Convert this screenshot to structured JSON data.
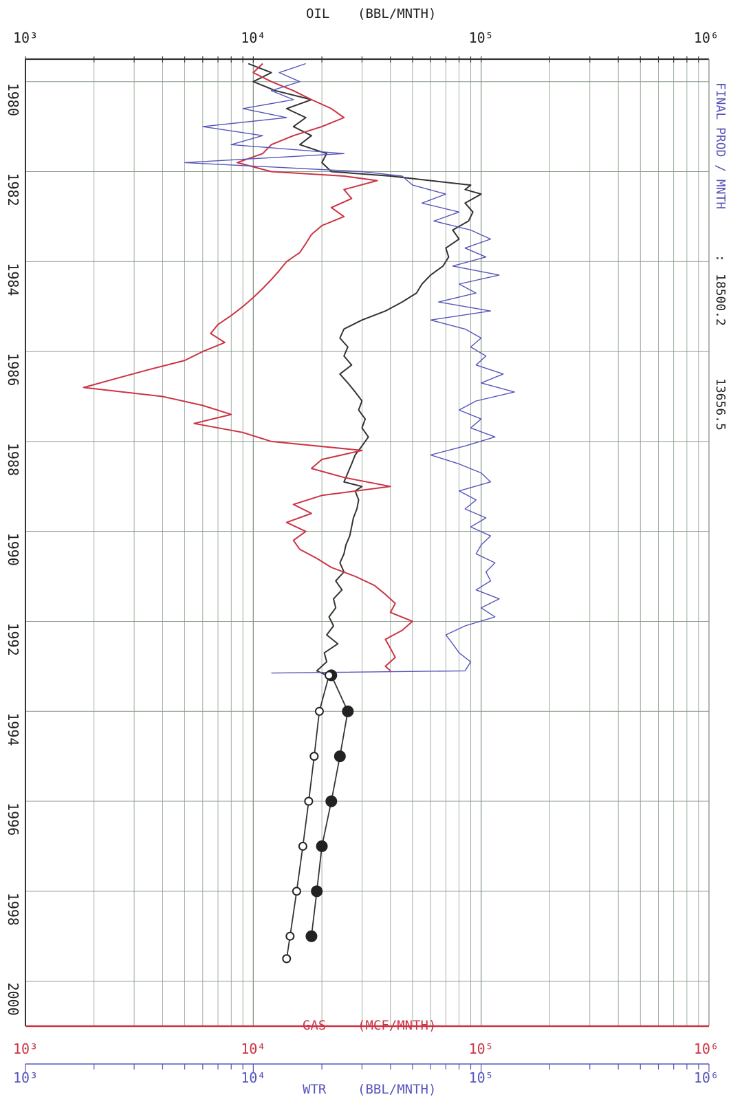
{
  "chart_data": {
    "type": "line",
    "x_scale": "log",
    "xlim": [
      1000,
      1000000
    ],
    "ylim": [
      1979.5,
      2001
    ],
    "y_orientation": "down",
    "grid": true,
    "top_axis": {
      "name": "OIL",
      "unit": "(BBL/MNTH)",
      "ticks": [
        "10³",
        "10⁴",
        "10⁵",
        "10⁶"
      ]
    },
    "gas_axis": {
      "name": "GAS",
      "unit": "(MCF/MNTH)",
      "ticks": [
        "10³",
        "10⁴",
        "10⁵",
        "10⁶"
      ]
    },
    "wtr_axis": {
      "name": "WTR",
      "unit": "(BBL/MNTH)",
      "ticks": [
        "10³",
        "10⁴",
        "10⁵",
        "10⁶"
      ]
    },
    "year_labels": [
      "1980",
      "1982",
      "1984",
      "1986",
      "1988",
      "1990",
      "1992",
      "1994",
      "1996",
      "1998",
      "2000"
    ],
    "year_values": [
      1980,
      1982,
      1984,
      1986,
      1988,
      1990,
      1992,
      1994,
      1996,
      1998,
      2000
    ],
    "right_label": {
      "title": "FINAL PROD / MNTH",
      "sep": ":",
      "value1": "18500.2",
      "value2": "13656.5"
    },
    "colors": {
      "oil": "#333333",
      "gas": "#cc3344",
      "water": "#5555bb",
      "grid": "#8a9a8a",
      "axis": "#333333"
    },
    "series": [
      {
        "key": "oil",
        "points": [
          [
            1979.6,
            9500
          ],
          [
            1979.8,
            12000
          ],
          [
            1980.0,
            10000
          ],
          [
            1980.2,
            12500
          ],
          [
            1980.4,
            18000
          ],
          [
            1980.6,
            14000
          ],
          [
            1980.8,
            17000
          ],
          [
            1981.0,
            15000
          ],
          [
            1981.2,
            18000
          ],
          [
            1981.4,
            16000
          ],
          [
            1981.6,
            21000
          ],
          [
            1981.8,
            20000
          ],
          [
            1982.0,
            22000
          ],
          [
            1982.1,
            40000
          ],
          [
            1982.2,
            60000
          ],
          [
            1982.3,
            90000
          ],
          [
            1982.4,
            85000
          ],
          [
            1982.5,
            100000
          ],
          [
            1982.7,
            85000
          ],
          [
            1982.9,
            92000
          ],
          [
            1983.1,
            88000
          ],
          [
            1983.3,
            75000
          ],
          [
            1983.5,
            80000
          ],
          [
            1983.7,
            70000
          ],
          [
            1983.9,
            72000
          ],
          [
            1984.1,
            68000
          ],
          [
            1984.3,
            60000
          ],
          [
            1984.5,
            55000
          ],
          [
            1984.7,
            52000
          ],
          [
            1984.9,
            45000
          ],
          [
            1985.1,
            38000
          ],
          [
            1985.3,
            30000
          ],
          [
            1985.5,
            25000
          ],
          [
            1985.7,
            24000
          ],
          [
            1985.9,
            26000
          ],
          [
            1986.1,
            25000
          ],
          [
            1986.3,
            27000
          ],
          [
            1986.5,
            24000
          ],
          [
            1986.7,
            26000
          ],
          [
            1986.9,
            28000
          ],
          [
            1987.1,
            30000
          ],
          [
            1987.3,
            29000
          ],
          [
            1987.5,
            31000
          ],
          [
            1987.7,
            30000
          ],
          [
            1987.9,
            32000
          ],
          [
            1988.1,
            30000
          ],
          [
            1988.3,
            28000
          ],
          [
            1988.5,
            27000
          ],
          [
            1988.7,
            26000
          ],
          [
            1988.9,
            25000
          ],
          [
            1989.0,
            30000
          ],
          [
            1989.1,
            28000
          ],
          [
            1989.3,
            29000
          ],
          [
            1989.5,
            28500
          ],
          [
            1989.7,
            27500
          ],
          [
            1989.9,
            27000
          ],
          [
            1990.1,
            26500
          ],
          [
            1990.3,
            25500
          ],
          [
            1990.5,
            25000
          ],
          [
            1990.7,
            24000
          ],
          [
            1990.9,
            25000
          ],
          [
            1991.1,
            23000
          ],
          [
            1991.3,
            24500
          ],
          [
            1991.5,
            22500
          ],
          [
            1991.7,
            23000
          ],
          [
            1991.9,
            21500
          ],
          [
            1992.1,
            22500
          ],
          [
            1992.3,
            21000
          ],
          [
            1992.5,
            23500
          ],
          [
            1992.7,
            20500
          ],
          [
            1992.9,
            21000
          ],
          [
            1993.1,
            19000
          ],
          [
            1993.2,
            21000
          ]
        ]
      },
      {
        "key": "gas",
        "points": [
          [
            1979.6,
            11000
          ],
          [
            1979.8,
            10000
          ],
          [
            1980.0,
            12000
          ],
          [
            1980.2,
            15000
          ],
          [
            1980.4,
            18000
          ],
          [
            1980.6,
            22000
          ],
          [
            1980.8,
            25000
          ],
          [
            1981.0,
            20000
          ],
          [
            1981.2,
            15000
          ],
          [
            1981.4,
            12000
          ],
          [
            1981.6,
            11000
          ],
          [
            1981.8,
            8500
          ],
          [
            1982.0,
            12000
          ],
          [
            1982.1,
            25000
          ],
          [
            1982.2,
            35000
          ],
          [
            1982.4,
            25000
          ],
          [
            1982.6,
            27000
          ],
          [
            1982.8,
            22000
          ],
          [
            1983.0,
            25000
          ],
          [
            1983.2,
            20000
          ],
          [
            1983.4,
            18000
          ],
          [
            1983.6,
            17000
          ],
          [
            1983.8,
            16000
          ],
          [
            1984.0,
            14000
          ],
          [
            1984.2,
            13000
          ],
          [
            1984.4,
            12000
          ],
          [
            1984.6,
            11000
          ],
          [
            1984.8,
            10000
          ],
          [
            1985.0,
            9000
          ],
          [
            1985.2,
            8000
          ],
          [
            1985.4,
            7000
          ],
          [
            1985.6,
            6500
          ],
          [
            1985.8,
            7500
          ],
          [
            1986.0,
            6000
          ],
          [
            1986.2,
            5000
          ],
          [
            1986.4,
            3500
          ],
          [
            1986.6,
            2500
          ],
          [
            1986.8,
            1800
          ],
          [
            1987.0,
            4000
          ],
          [
            1987.2,
            6000
          ],
          [
            1987.4,
            8000
          ],
          [
            1987.6,
            5500
          ],
          [
            1987.8,
            9000
          ],
          [
            1988.0,
            12000
          ],
          [
            1988.2,
            30000
          ],
          [
            1988.4,
            20000
          ],
          [
            1988.6,
            18000
          ],
          [
            1988.8,
            25000
          ],
          [
            1989.0,
            40000
          ],
          [
            1989.2,
            20000
          ],
          [
            1989.4,
            15000
          ],
          [
            1989.6,
            18000
          ],
          [
            1989.8,
            14000
          ],
          [
            1990.0,
            17000
          ],
          [
            1990.2,
            15000
          ],
          [
            1990.4,
            16000
          ],
          [
            1990.6,
            19000
          ],
          [
            1990.8,
            22000
          ],
          [
            1991.0,
            28000
          ],
          [
            1991.2,
            34000
          ],
          [
            1991.4,
            38000
          ],
          [
            1991.6,
            42000
          ],
          [
            1991.8,
            40000
          ],
          [
            1992.0,
            50000
          ],
          [
            1992.2,
            45000
          ],
          [
            1992.4,
            38000
          ],
          [
            1992.6,
            40000
          ],
          [
            1992.8,
            42000
          ],
          [
            1993.0,
            38000
          ],
          [
            1993.1,
            40000
          ]
        ]
      },
      {
        "key": "water",
        "points": [
          [
            1979.6,
            17000
          ],
          [
            1979.8,
            13000
          ],
          [
            1980.0,
            16000
          ],
          [
            1980.2,
            12000
          ],
          [
            1980.4,
            15000
          ],
          [
            1980.6,
            9000
          ],
          [
            1980.8,
            14000
          ],
          [
            1981.0,
            6000
          ],
          [
            1981.2,
            11000
          ],
          [
            1981.4,
            8000
          ],
          [
            1981.6,
            25000
          ],
          [
            1981.8,
            5000
          ],
          [
            1982.0,
            30000
          ],
          [
            1982.1,
            45000
          ],
          [
            1982.3,
            50000
          ],
          [
            1982.5,
            70000
          ],
          [
            1982.7,
            55000
          ],
          [
            1982.9,
            80000
          ],
          [
            1983.1,
            62000
          ],
          [
            1983.3,
            90000
          ],
          [
            1983.5,
            110000
          ],
          [
            1983.7,
            85000
          ],
          [
            1983.9,
            105000
          ],
          [
            1984.1,
            75000
          ],
          [
            1984.3,
            120000
          ],
          [
            1984.5,
            80000
          ],
          [
            1984.7,
            95000
          ],
          [
            1984.9,
            65000
          ],
          [
            1985.1,
            110000
          ],
          [
            1985.3,
            60000
          ],
          [
            1985.5,
            85000
          ],
          [
            1985.7,
            100000
          ],
          [
            1985.9,
            90000
          ],
          [
            1986.1,
            105000
          ],
          [
            1986.3,
            95000
          ],
          [
            1986.5,
            125000
          ],
          [
            1986.7,
            100000
          ],
          [
            1986.9,
            140000
          ],
          [
            1987.1,
            95000
          ],
          [
            1987.3,
            80000
          ],
          [
            1987.5,
            100000
          ],
          [
            1987.7,
            90000
          ],
          [
            1987.9,
            115000
          ],
          [
            1988.1,
            85000
          ],
          [
            1988.3,
            60000
          ],
          [
            1988.5,
            80000
          ],
          [
            1988.7,
            100000
          ],
          [
            1988.9,
            110000
          ],
          [
            1989.1,
            80000
          ],
          [
            1989.3,
            95000
          ],
          [
            1989.5,
            85000
          ],
          [
            1989.7,
            105000
          ],
          [
            1989.9,
            90000
          ],
          [
            1990.1,
            110000
          ],
          [
            1990.3,
            100000
          ],
          [
            1990.5,
            95000
          ],
          [
            1990.7,
            115000
          ],
          [
            1990.9,
            105000
          ],
          [
            1991.1,
            110000
          ],
          [
            1991.3,
            95000
          ],
          [
            1991.5,
            120000
          ],
          [
            1991.7,
            100000
          ],
          [
            1991.9,
            115000
          ],
          [
            1992.1,
            85000
          ],
          [
            1992.3,
            70000
          ],
          [
            1992.5,
            75000
          ],
          [
            1992.7,
            80000
          ],
          [
            1992.9,
            90000
          ],
          [
            1993.1,
            85000
          ],
          [
            1993.15,
            12000
          ]
        ]
      },
      {
        "key": "forecast_filled",
        "marker": "filled-circle",
        "points": [
          [
            1993.2,
            22000
          ],
          [
            1994.0,
            26000
          ],
          [
            1995.0,
            24000
          ],
          [
            1996.0,
            22000
          ],
          [
            1997.0,
            20000
          ],
          [
            1998.0,
            19000
          ],
          [
            1999.0,
            18000
          ]
        ]
      },
      {
        "key": "forecast_open",
        "marker": "open-circle",
        "points": [
          [
            1993.2,
            21500
          ],
          [
            1994.0,
            19500
          ],
          [
            1995.0,
            18500
          ],
          [
            1996.0,
            17500
          ],
          [
            1997.0,
            16500
          ],
          [
            1998.0,
            15500
          ],
          [
            1999.0,
            14500
          ],
          [
            1999.5,
            14000
          ]
        ]
      }
    ]
  }
}
